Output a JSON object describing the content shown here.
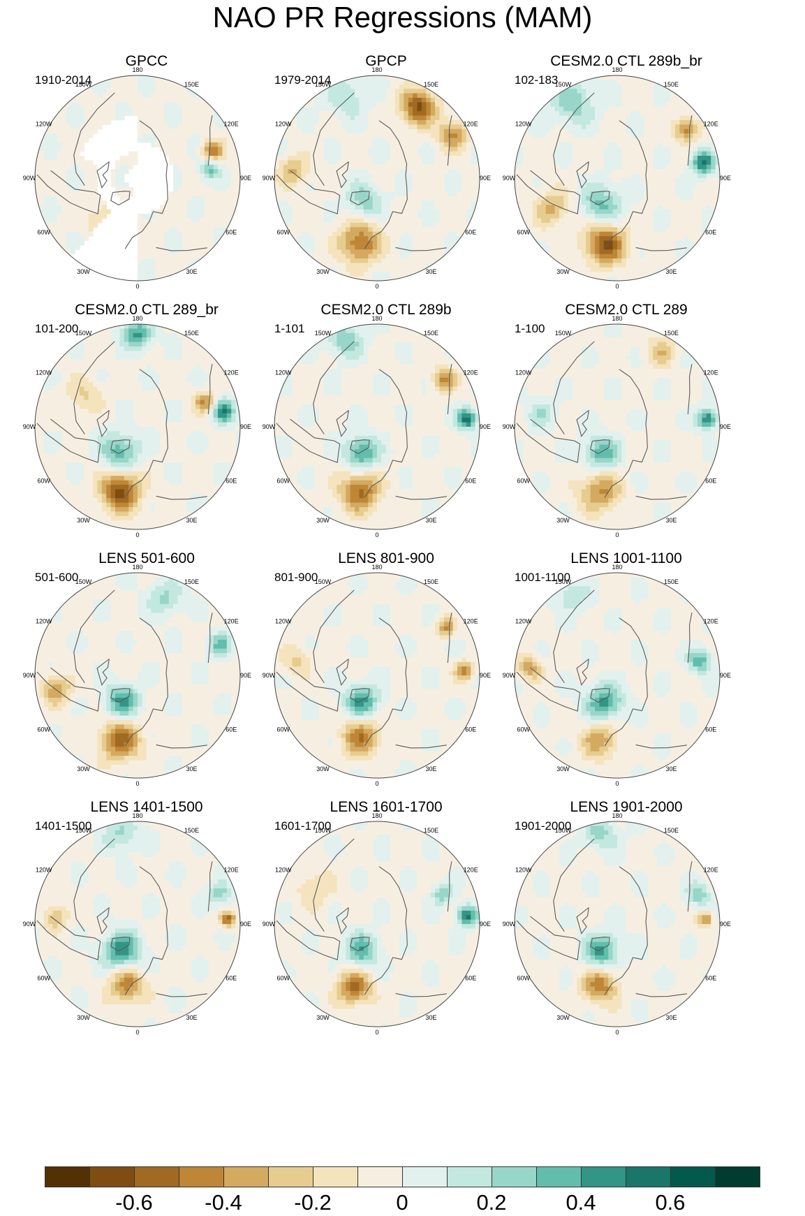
{
  "figure": {
    "title": "NAO PR Regressions (MAM)",
    "lon_labels": [
      "180",
      "150E",
      "120E",
      "90E",
      "60E",
      "30E",
      "0",
      "30W",
      "60W",
      "90W",
      "120W",
      "150W"
    ]
  },
  "panels": [
    {
      "title": "GPCC",
      "period": "1910-2014",
      "masked": true,
      "anomalies": [
        {
          "lon": 110,
          "r": 0.78,
          "v": -0.45,
          "s": 0.07
        },
        {
          "lon": 97,
          "r": 0.7,
          "v": 0.35,
          "s": 0.07
        },
        {
          "lon": -38,
          "r": 0.5,
          "v": -0.2,
          "s": 0.13
        }
      ]
    },
    {
      "title": "GPCP",
      "period": "1979-2014",
      "masked": false,
      "anomalies": [
        {
          "lon": 150,
          "r": 0.8,
          "v": -0.6,
          "s": 0.12
        },
        {
          "lon": -15,
          "r": 0.65,
          "v": -0.5,
          "s": 0.14
        },
        {
          "lon": 120,
          "r": 0.85,
          "v": -0.4,
          "s": 0.1
        },
        {
          "lon": -30,
          "r": 0.25,
          "v": 0.3,
          "s": 0.12
        },
        {
          "lon": -95,
          "r": 0.82,
          "v": -0.3,
          "s": 0.1
        },
        {
          "lon": -160,
          "r": 0.85,
          "v": 0.2,
          "s": 0.15
        }
      ]
    },
    {
      "title": "CESM2.0 CTL 289b_br",
      "period": "102-183",
      "masked": false,
      "anomalies": [
        {
          "lon": -10,
          "r": 0.65,
          "v": -0.6,
          "s": 0.14
        },
        {
          "lon": -30,
          "r": 0.3,
          "v": 0.35,
          "s": 0.14
        },
        {
          "lon": 100,
          "r": 0.85,
          "v": 0.55,
          "s": 0.08
        },
        {
          "lon": 125,
          "r": 0.82,
          "v": -0.45,
          "s": 0.08
        },
        {
          "lon": -150,
          "r": 0.85,
          "v": 0.3,
          "s": 0.15
        },
        {
          "lon": -65,
          "r": 0.7,
          "v": -0.3,
          "s": 0.12
        }
      ]
    },
    {
      "title": "CESM2.0 CTL 289_br",
      "period": "101-200",
      "masked": false,
      "anomalies": [
        {
          "lon": -15,
          "r": 0.65,
          "v": -0.6,
          "s": 0.14
        },
        {
          "lon": -35,
          "r": 0.3,
          "v": 0.4,
          "s": 0.13
        },
        {
          "lon": 100,
          "r": 0.85,
          "v": 0.5,
          "s": 0.08
        },
        {
          "lon": 180,
          "r": 0.9,
          "v": 0.45,
          "s": 0.1
        },
        {
          "lon": 110,
          "r": 0.7,
          "v": -0.4,
          "s": 0.07
        },
        {
          "lon": -120,
          "r": 0.6,
          "v": -0.2,
          "s": 0.12
        }
      ]
    },
    {
      "title": "CESM2.0 CTL 289b",
      "period": "1-101",
      "masked": false,
      "anomalies": [
        {
          "lon": -15,
          "r": 0.65,
          "v": -0.5,
          "s": 0.14
        },
        {
          "lon": -30,
          "r": 0.3,
          "v": 0.45,
          "s": 0.12
        },
        {
          "lon": 95,
          "r": 0.88,
          "v": 0.6,
          "s": 0.07
        },
        {
          "lon": 125,
          "r": 0.8,
          "v": -0.4,
          "s": 0.08
        },
        {
          "lon": -160,
          "r": 0.9,
          "v": 0.3,
          "s": 0.12
        }
      ]
    },
    {
      "title": "CESM2.0 CTL 289",
      "period": "1-100",
      "masked": false,
      "anomalies": [
        {
          "lon": -15,
          "r": 0.65,
          "v": -0.4,
          "s": 0.14
        },
        {
          "lon": -30,
          "r": 0.3,
          "v": 0.4,
          "s": 0.12
        },
        {
          "lon": 95,
          "r": 0.88,
          "v": 0.55,
          "s": 0.07
        },
        {
          "lon": 150,
          "r": 0.85,
          "v": -0.25,
          "s": 0.1
        },
        {
          "lon": -100,
          "r": 0.75,
          "v": 0.2,
          "s": 0.1
        }
      ]
    },
    {
      "title": "LENS 501-600",
      "period": "501-600",
      "masked": false,
      "anomalies": [
        {
          "lon": -15,
          "r": 0.65,
          "v": -0.5,
          "s": 0.14
        },
        {
          "lon": -30,
          "r": 0.3,
          "v": 0.45,
          "s": 0.12
        },
        {
          "lon": 110,
          "r": 0.85,
          "v": 0.35,
          "s": 0.08
        },
        {
          "lon": -80,
          "r": 0.8,
          "v": -0.35,
          "s": 0.1
        },
        {
          "lon": 160,
          "r": 0.8,
          "v": 0.25,
          "s": 0.12
        }
      ]
    },
    {
      "title": "LENS 801-900",
      "period": "801-900",
      "masked": false,
      "anomalies": [
        {
          "lon": -15,
          "r": 0.62,
          "v": -0.45,
          "s": 0.13
        },
        {
          "lon": -30,
          "r": 0.3,
          "v": 0.45,
          "s": 0.12
        },
        {
          "lon": 93,
          "r": 0.85,
          "v": -0.45,
          "s": 0.06
        },
        {
          "lon": 125,
          "r": 0.82,
          "v": -0.4,
          "s": 0.06
        },
        {
          "lon": -100,
          "r": 0.8,
          "v": -0.2,
          "s": 0.1
        }
      ]
    },
    {
      "title": "LENS 1001-1100",
      "period": "1001-1100",
      "masked": false,
      "anomalies": [
        {
          "lon": -15,
          "r": 0.65,
          "v": -0.35,
          "s": 0.13
        },
        {
          "lon": -25,
          "r": 0.3,
          "v": 0.45,
          "s": 0.13
        },
        {
          "lon": 100,
          "r": 0.82,
          "v": 0.4,
          "s": 0.08
        },
        {
          "lon": -95,
          "r": 0.85,
          "v": -0.35,
          "s": 0.08
        },
        {
          "lon": -150,
          "r": 0.9,
          "v": 0.2,
          "s": 0.12
        }
      ]
    },
    {
      "title": "LENS 1401-1500",
      "period": "1401-1500",
      "masked": false,
      "anomalies": [
        {
          "lon": -10,
          "r": 0.6,
          "v": -0.45,
          "s": 0.12
        },
        {
          "lon": -30,
          "r": 0.3,
          "v": 0.5,
          "s": 0.13
        },
        {
          "lon": 93,
          "r": 0.88,
          "v": -0.55,
          "s": 0.05
        },
        {
          "lon": 110,
          "r": 0.85,
          "v": 0.3,
          "s": 0.08
        },
        {
          "lon": -95,
          "r": 0.8,
          "v": -0.3,
          "s": 0.08
        },
        {
          "lon": -170,
          "r": 0.9,
          "v": 0.25,
          "s": 0.12
        }
      ]
    },
    {
      "title": "LENS 1601-1700",
      "period": "1601-1700",
      "masked": false,
      "anomalies": [
        {
          "lon": -20,
          "r": 0.65,
          "v": -0.5,
          "s": 0.12
        },
        {
          "lon": -30,
          "r": 0.3,
          "v": 0.4,
          "s": 0.12
        },
        {
          "lon": 95,
          "r": 0.88,
          "v": 0.55,
          "s": 0.07
        },
        {
          "lon": 115,
          "r": 0.7,
          "v": 0.3,
          "s": 0.07
        },
        {
          "lon": -120,
          "r": 0.7,
          "v": -0.2,
          "s": 0.12
        }
      ]
    },
    {
      "title": "LENS 1901-2000",
      "period": "1901-2000",
      "masked": false,
      "anomalies": [
        {
          "lon": -15,
          "r": 0.62,
          "v": -0.45,
          "s": 0.12
        },
        {
          "lon": -30,
          "r": 0.3,
          "v": 0.45,
          "s": 0.12
        },
        {
          "lon": 93,
          "r": 0.86,
          "v": -0.45,
          "s": 0.05
        },
        {
          "lon": 110,
          "r": 0.85,
          "v": 0.3,
          "s": 0.08
        },
        {
          "lon": -170,
          "r": 0.9,
          "v": 0.25,
          "s": 0.12
        }
      ]
    }
  ],
  "colorbar": {
    "colors": [
      "#543005",
      "#7f4d12",
      "#a06a22",
      "#bf8637",
      "#d4a960",
      "#e6cc8f",
      "#f4e3bd",
      "#f6efe1",
      "#e3f1ee",
      "#c3e8df",
      "#97d6c9",
      "#63bdad",
      "#329586",
      "#1a7668",
      "#035a4c",
      "#003c30"
    ],
    "labels": [
      "-0.6",
      "-0.4",
      "-0.2",
      "0",
      "0.2",
      "0.4",
      "0.6"
    ],
    "label_values": [
      -0.6,
      -0.4,
      -0.2,
      0,
      0.2,
      0.4,
      0.6
    ],
    "levels": [
      -0.7,
      -0.6,
      -0.5,
      -0.4,
      -0.3,
      -0.2,
      -0.1,
      0,
      0.1,
      0.2,
      0.3,
      0.4,
      0.5,
      0.6,
      0.7
    ]
  }
}
